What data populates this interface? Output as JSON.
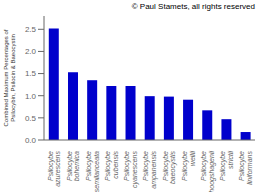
{
  "chart_data": {
    "type": "bar",
    "categories": [
      "Psilocybe\nazurescens",
      "Psilocybe\nbohemica",
      "Psilocybe\nsemilanceata",
      "Psilocybe\ncubensis",
      "Psilocybe\ncyanescens",
      "Psilocybe\nampanensis",
      "Psilocybe\nbaeocystis",
      "Psilocybe\nweilii",
      "Psilocybe\nhoogshagenii",
      "Psilocybe\nstrictii",
      "Psilocybe\nliniformans"
    ],
    "values": [
      2.52,
      1.53,
      1.35,
      1.22,
      1.22,
      0.99,
      0.98,
      0.91,
      0.67,
      0.47,
      0.18
    ],
    "color": "#0000CC",
    "ylabel": "Combined Maximum Percentages of\nPsilocybin, Psilocin & Baeocystin",
    "ylim": [
      0,
      2.8
    ],
    "yticks": [
      {
        "value": 0,
        "label": "0.0"
      },
      0.5,
      {
        "value": 1,
        "label": "1.0"
      },
      1.5,
      {
        "value": 2,
        "label": "2.0"
      },
      2.5
    ],
    "annotations": [
      "© Paul Stamets, all rights reserved"
    ]
  }
}
